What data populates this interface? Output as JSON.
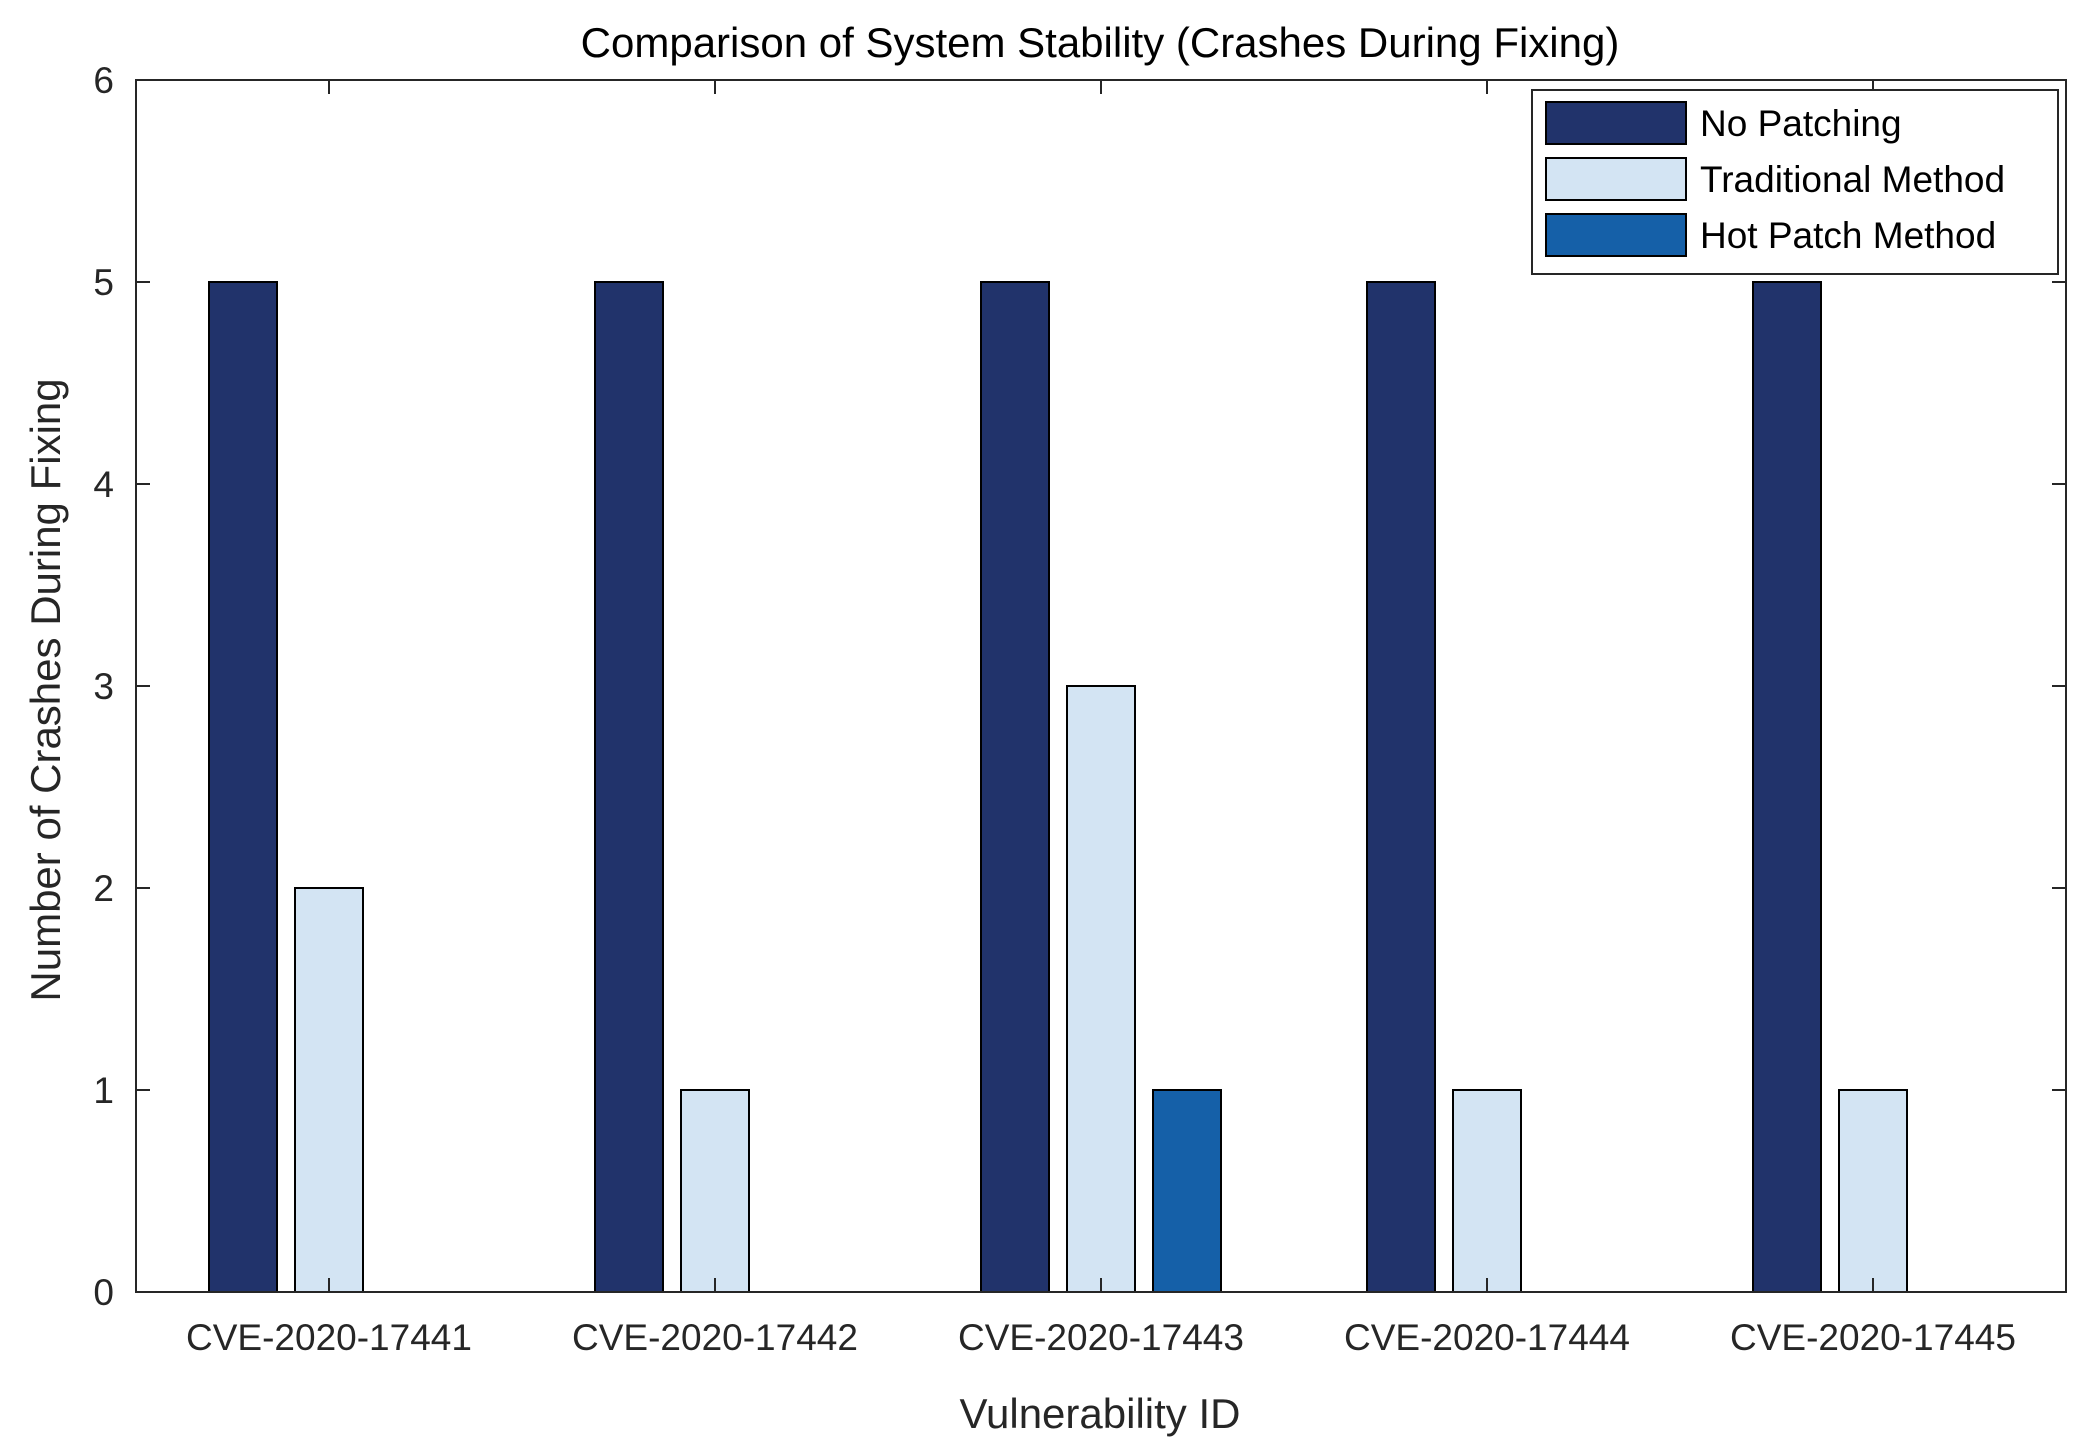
{
  "chart_data": {
    "type": "bar",
    "title": "Comparison of System Stability (Crashes During Fixing)",
    "xlabel": "Vulnerability ID",
    "ylabel": "Number of Crashes During Fixing",
    "categories": [
      "CVE-2020-17441",
      "CVE-2020-17442",
      "CVE-2020-17443",
      "CVE-2020-17444",
      "CVE-2020-17445"
    ],
    "series": [
      {
        "name": "No Patching",
        "color": "#21336b",
        "values": [
          5,
          5,
          5,
          5,
          5
        ]
      },
      {
        "name": "Traditional Method",
        "color": "#d3e4f3",
        "values": [
          2,
          1,
          3,
          1,
          1
        ]
      },
      {
        "name": "Hot Patch Method",
        "color": "#1560a8",
        "values": [
          0,
          0,
          1,
          0,
          0
        ]
      }
    ],
    "ylim": [
      0,
      6
    ],
    "yticks": [
      0,
      1,
      2,
      3,
      4,
      5,
      6
    ],
    "grid": false,
    "legend_position": "top-right"
  }
}
